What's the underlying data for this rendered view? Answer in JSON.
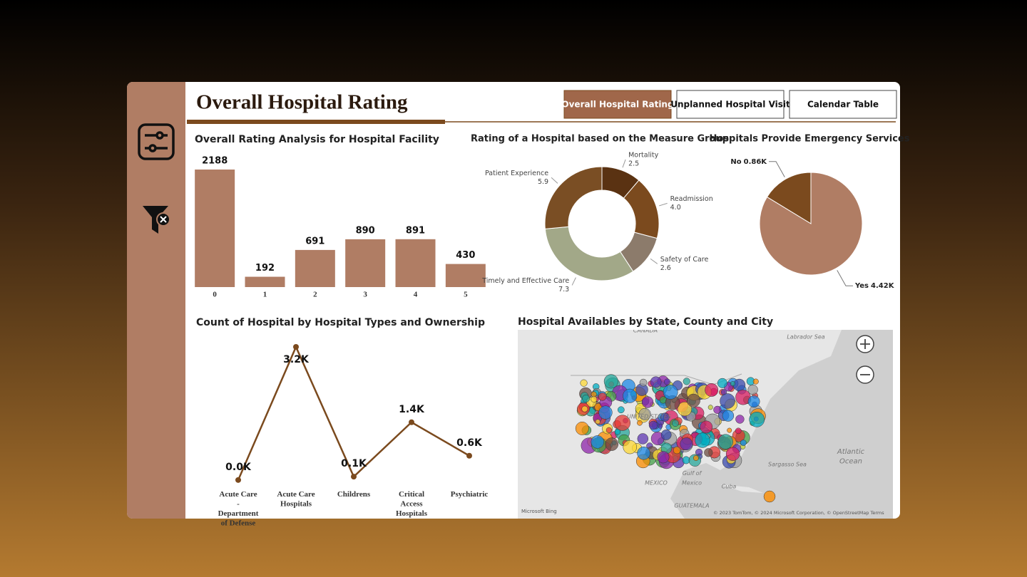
{
  "header": {
    "title": "Overall Hospital Rating"
  },
  "nav": {
    "buttons": [
      "Overall Hospital Rating",
      "Unplanned Hospital Visit",
      "Calendar Table"
    ],
    "active": 0
  },
  "chart_data": [
    {
      "type": "bar",
      "title": "Overall Rating Analysis for Hospital Facility",
      "categories": [
        "0",
        "1",
        "2",
        "3",
        "4",
        "5"
      ],
      "values": [
        2188,
        192,
        691,
        890,
        891,
        430
      ],
      "color": "#b07d64"
    },
    {
      "type": "donut",
      "title": "Rating of a Hospital based on the Measure Group",
      "categories": [
        "Mortality",
        "Readmission",
        "Safety of Care",
        "Timely and Effective Care",
        "Patient Experience"
      ],
      "values": [
        2.5,
        4.0,
        2.6,
        7.3,
        5.9
      ],
      "value_labels": [
        "2.5",
        "4.0",
        "2.6",
        "7.3",
        "5.9"
      ],
      "colors": [
        "#5a3212",
        "#7b4a1e",
        "#8c7b6b",
        "#a2a888",
        "#7a4e24"
      ]
    },
    {
      "type": "pie",
      "title": "Hospitals Provide Emergency Services",
      "categories": [
        "No",
        "Yes"
      ],
      "values": [
        860,
        4420
      ],
      "value_labels": [
        "0.86K",
        "4.42K"
      ],
      "colors": [
        "#7b4a1e",
        "#b07d64"
      ]
    },
    {
      "type": "line",
      "title": "Count of Hospital by Hospital Types and Ownership",
      "categories": [
        "Acute Care - Department of Defense",
        "Acute Care Hospitals",
        "Childrens",
        "Critical Access Hospitals",
        "Psychiatric"
      ],
      "values": [
        20,
        3200,
        100,
        1400,
        600
      ],
      "value_labels": [
        "0.0K",
        "3.2K",
        "0.1K",
        "1.4K",
        "0.6K"
      ],
      "color": "#7b4a1e"
    }
  ],
  "map": {
    "title": "Hospital Availables by State, County and City",
    "labels": [
      "CANADA",
      "Labrador Sea",
      "UNITED STATES",
      "Gulf of Mexico",
      "MEXICO",
      "Atlantic Ocean",
      "Sargasso Sea",
      "Cuba",
      "GUATEMALA"
    ],
    "brand": "Microsoft Bing",
    "attribution": "© 2023 TomTom, © 2024 Microsoft Corporation, © OpenStreetMap Terms"
  }
}
